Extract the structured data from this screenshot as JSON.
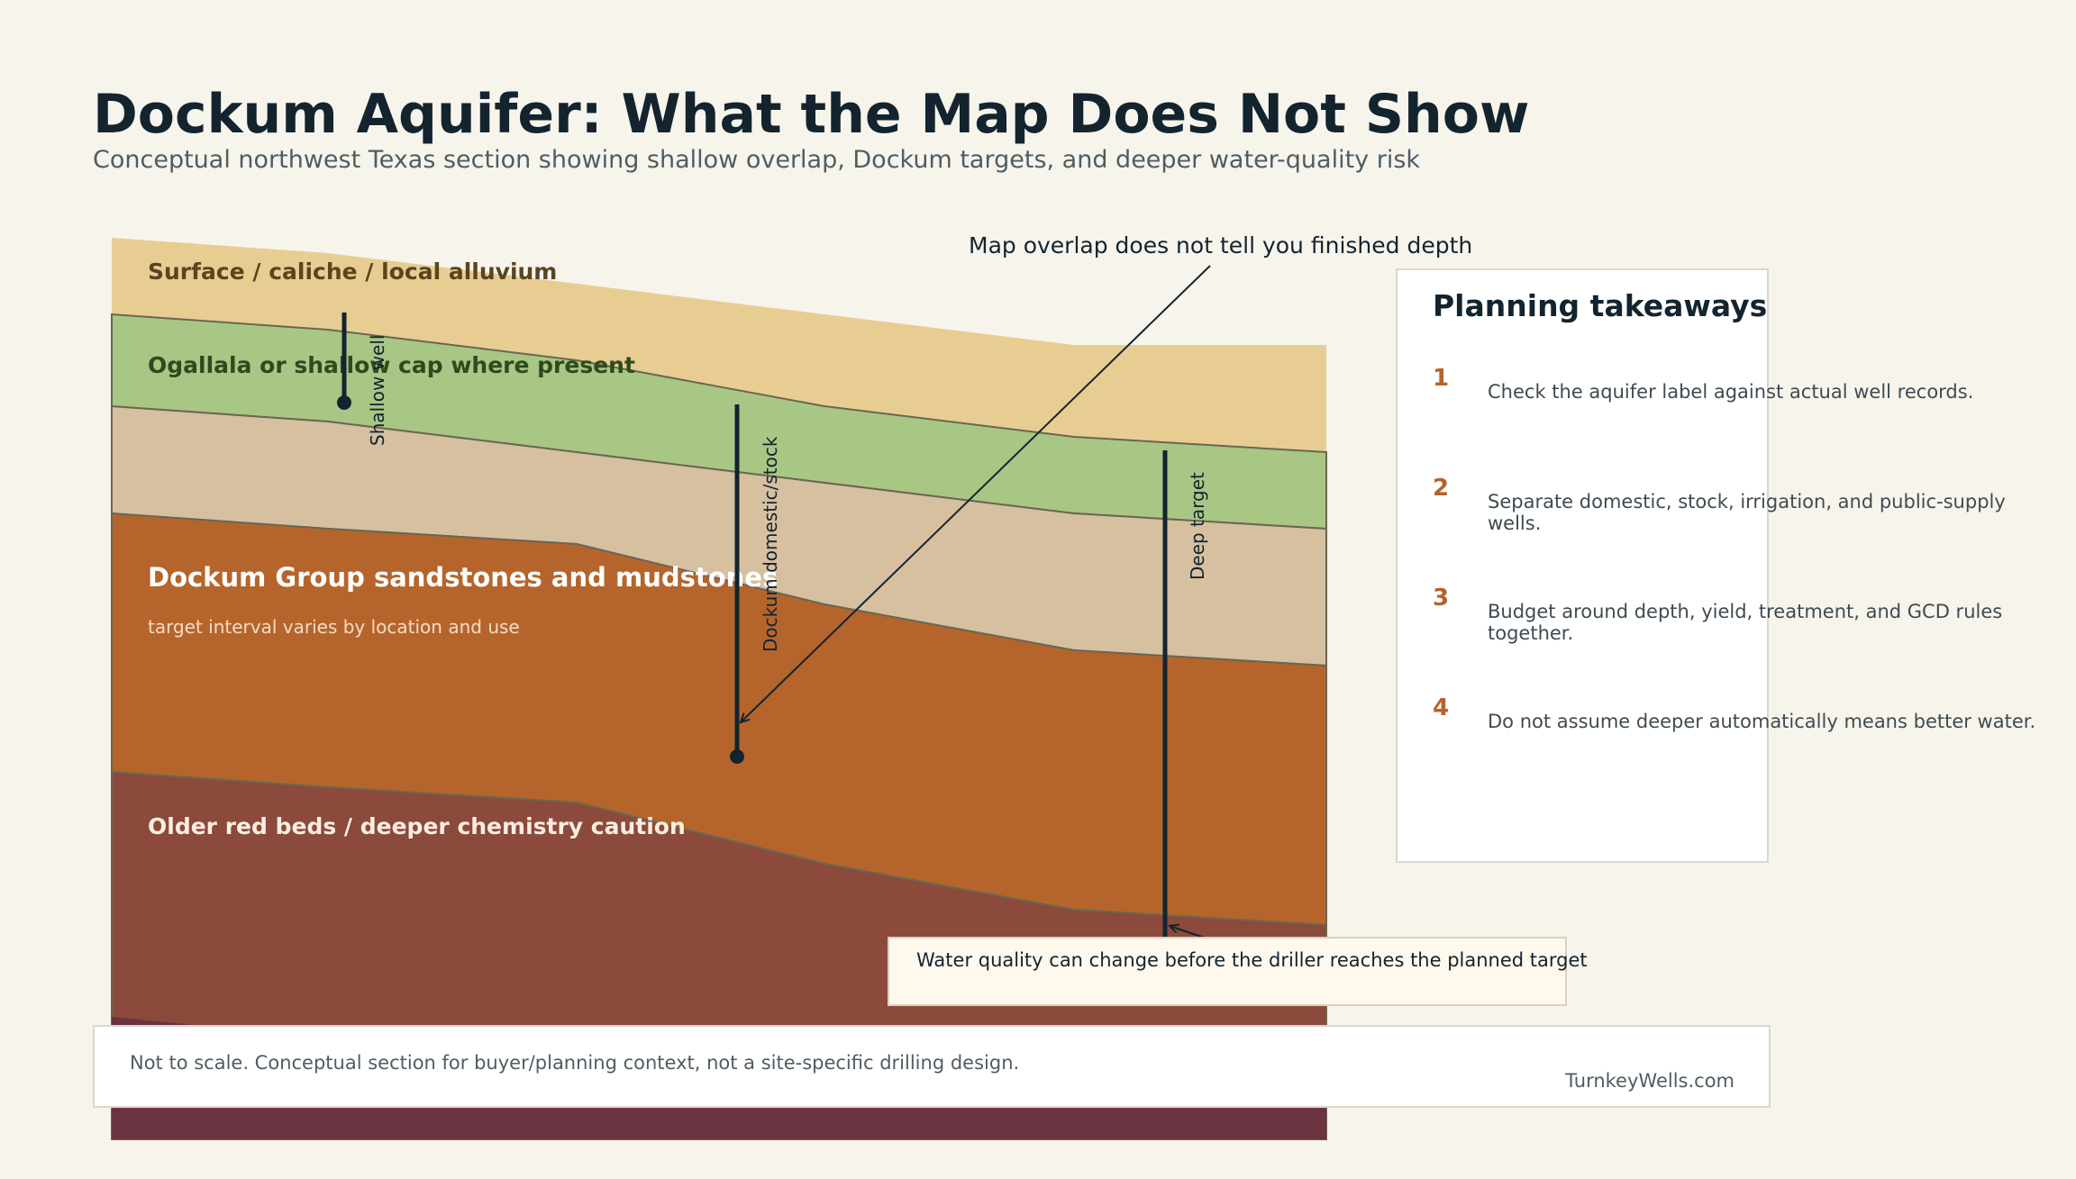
{
  "title": "Dockum Aquifer: What the Map Does Not Show",
  "subtitle": "Conceptual northwest Texas section showing shallow overlap, Dockum targets, and deeper water-quality risk",
  "layers": [
    {
      "label": "Surface / caliche / local alluvium",
      "color": "#e8cd93",
      "label_color": "#5a4520"
    },
    {
      "label": "Ogallala or shallow cap where present",
      "color": "#a8c784",
      "label_color": "#2e4a1f"
    },
    {
      "label": "",
      "color": "#d6c0a0"
    },
    {
      "label": "Dockum Group sandstones and mudstones",
      "sublabel": "target interval varies by location and use",
      "color": "#b5652c",
      "label_color": "#ffffff"
    },
    {
      "label": "Older red beds / deeper chemistry caution",
      "color": "#8b4a3b",
      "label_color": "#fbeee0"
    },
    {
      "label": "",
      "color": "#6b3340"
    }
  ],
  "wells": [
    {
      "label": "Shallow well"
    },
    {
      "label": "Dockum domestic/stock"
    },
    {
      "label": "Deep target"
    }
  ],
  "annotations": {
    "map_overlap": "Map overlap does not tell you finished depth",
    "water_quality": "Water quality can change before the driller reaches the planned target"
  },
  "panel": {
    "title": "Planning takeaways",
    "items": [
      {
        "num": "1",
        "text": "Check the aquifer label against actual well records."
      },
      {
        "num": "2",
        "text": "Separate domestic, stock, irrigation, and public-supply wells."
      },
      {
        "num": "3",
        "text": "Budget around depth, yield, treatment, and GCD rules together."
      },
      {
        "num": "4",
        "text": "Do not assume deeper automatically means better water."
      }
    ]
  },
  "footer": {
    "note": "Not to scale. Conceptual section for buyer/planning context, not a site-specific drilling design.",
    "brand": "TurnkeyWells.com"
  },
  "colors": {
    "background": "#f7f4ec",
    "ink": "#13242f",
    "accent": "#b5632b"
  }
}
